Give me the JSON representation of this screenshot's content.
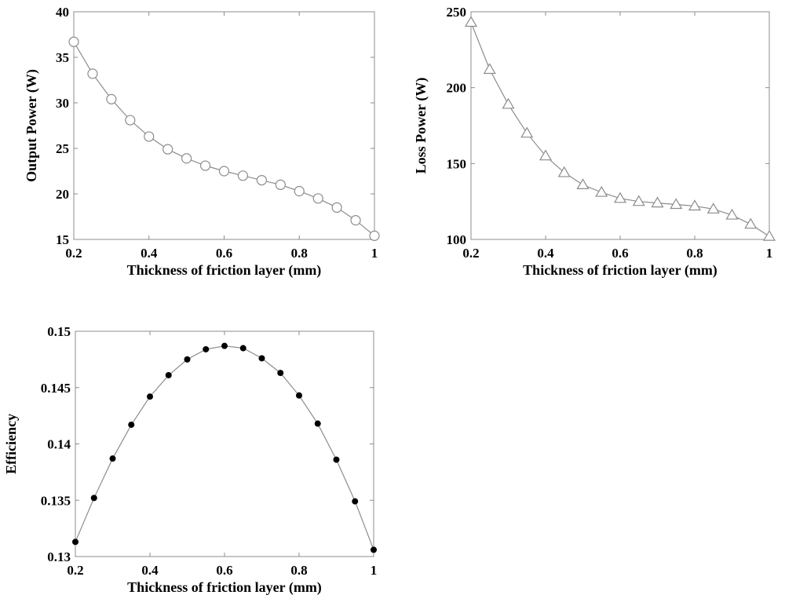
{
  "chart_data": [
    {
      "type": "line",
      "xlabel": "Thickness of friction layer (mm)",
      "ylabel": "Output Power (W)",
      "xlim": [
        0.2,
        1
      ],
      "ylim": [
        15,
        40
      ],
      "xticks": [
        "0.2",
        "0.4",
        "0.6",
        "0.8",
        "1"
      ],
      "yticks": [
        "15",
        "20",
        "25",
        "30",
        "35",
        "40"
      ],
      "marker": "open-circle",
      "line_color": "#8c8c8c",
      "series": [
        {
          "x": [
            0.2,
            0.25,
            0.3,
            0.35,
            0.4,
            0.45,
            0.5,
            0.55,
            0.6,
            0.65,
            0.7,
            0.75,
            0.8,
            0.85,
            0.9,
            0.95,
            1.0
          ],
          "y": [
            36.7,
            33.2,
            30.4,
            28.1,
            26.3,
            24.9,
            23.9,
            23.1,
            22.5,
            22.0,
            21.5,
            21.0,
            20.3,
            19.5,
            18.5,
            17.1,
            15.4
          ]
        }
      ]
    },
    {
      "type": "line",
      "xlabel": "Thickness of friction layer (mm)",
      "ylabel": "Loss Power (W)",
      "xlim": [
        0.2,
        1
      ],
      "ylim": [
        100,
        250
      ],
      "xticks": [
        "0.2",
        "0.4",
        "0.6",
        "0.8",
        "1"
      ],
      "yticks": [
        "100",
        "150",
        "200",
        "250"
      ],
      "marker": "open-triangle",
      "line_color": "#8c8c8c",
      "series": [
        {
          "x": [
            0.2,
            0.25,
            0.3,
            0.35,
            0.4,
            0.45,
            0.5,
            0.55,
            0.6,
            0.65,
            0.7,
            0.75,
            0.8,
            0.85,
            0.9,
            0.95,
            1.0
          ],
          "y": [
            243,
            212,
            189,
            170,
            155,
            144,
            136,
            131,
            127,
            125,
            124,
            123,
            122,
            120,
            116,
            110,
            102
          ]
        }
      ]
    },
    {
      "type": "line",
      "xlabel": "Thickness of friction layer (mm)",
      "ylabel": "Efficiency",
      "xlim": [
        0.2,
        1
      ],
      "ylim": [
        0.13,
        0.15
      ],
      "xticks": [
        "0.2",
        "0.4",
        "0.6",
        "0.8",
        "1"
      ],
      "yticks": [
        "0.13",
        "0.135",
        "0.14",
        "0.145",
        "0.15"
      ],
      "marker": "filled-circle",
      "line_color": "#8c8c8c",
      "series": [
        {
          "x": [
            0.2,
            0.25,
            0.3,
            0.35,
            0.4,
            0.45,
            0.5,
            0.55,
            0.6,
            0.65,
            0.7,
            0.75,
            0.8,
            0.85,
            0.9,
            0.95,
            1.0
          ],
          "y": [
            0.1313,
            0.1352,
            0.1387,
            0.1417,
            0.1442,
            0.1461,
            0.1475,
            0.1484,
            0.1487,
            0.1485,
            0.1476,
            0.1463,
            0.1443,
            0.1418,
            0.1386,
            0.1349,
            0.1306
          ]
        }
      ]
    }
  ]
}
